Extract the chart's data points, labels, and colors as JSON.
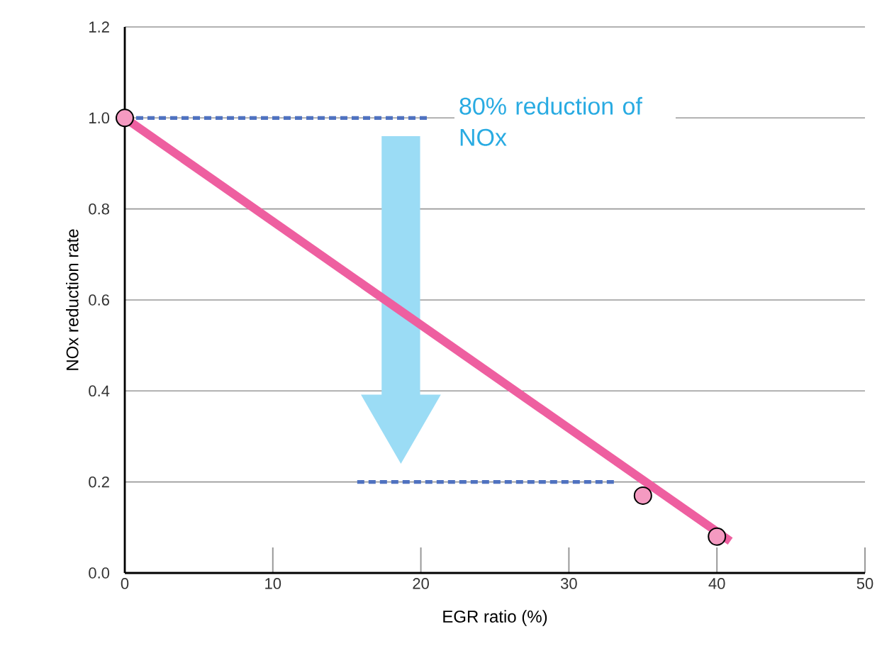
{
  "chart_data": {
    "type": "line",
    "xlabel": "EGR ratio (%)",
    "ylabel": "NOx reduction rate",
    "xlim": [
      0,
      50
    ],
    "ylim": [
      0,
      1.2
    ],
    "xticks": [
      0,
      10,
      20,
      30,
      40,
      50
    ],
    "yticks": [
      {
        "value": 0,
        "label": "0.0"
      },
      {
        "value": 0.2,
        "label": "0.2"
      },
      {
        "value": 0.4,
        "label": "0.4"
      },
      {
        "value": 0.6,
        "label": "0.6"
      },
      {
        "value": 0.8,
        "label": "0.8"
      },
      {
        "value": 1.0,
        "label": "1.0"
      },
      {
        "value": 1.2,
        "label": "1.2"
      }
    ],
    "grid": "y",
    "annotations": [
      "80% reduction of NOx"
    ],
    "series": [
      {
        "color": "#4f72c0",
        "line_style": "dashed",
        "x": [
          0,
          20.6
        ],
        "values": [
          1.0,
          1.0
        ]
      },
      {
        "color": "#4f72c0",
        "line_style": "dashed",
        "x": [
          15.7,
          33.2
        ],
        "values": [
          0.2,
          0.2
        ]
      },
      {
        "color": "#ee5fa0",
        "line_style": "solid",
        "x": [
          0,
          40.9
        ],
        "values": [
          1.0,
          0.07
        ]
      },
      {
        "type": "scatter",
        "color": "#f49ac1",
        "marker": "circle",
        "x": [
          0,
          35,
          40
        ],
        "values": [
          1.0,
          0.17,
          0.08
        ]
      }
    ]
  }
}
